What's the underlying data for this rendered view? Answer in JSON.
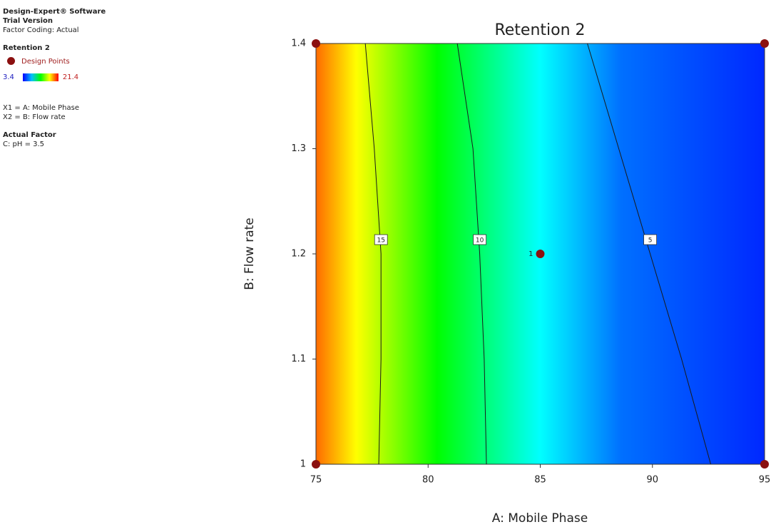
{
  "sidebar": {
    "software": "Design-Expert® Software",
    "version": "Trial Version",
    "coding": "Factor Coding: Actual",
    "response": "Retention 2",
    "design_points": "Design Points",
    "scale_min": "3.4",
    "scale_max": "21.4",
    "x1": "X1 = A: Mobile Phase",
    "x2": "X2 = B: Flow rate",
    "actual_factor": "Actual Factor",
    "factor_c": "C: pH = 3.5"
  },
  "chart_data": {
    "type": "contour",
    "title": "Retention 2",
    "x_label": "A: Mobile Phase",
    "y_label": "B: Flow rate",
    "xlim": [
      75,
      95
    ],
    "ylim": [
      1,
      1.4
    ],
    "xticks": [
      75,
      80,
      85,
      90,
      95
    ],
    "yticks": [
      1,
      1.1,
      1.2,
      1.3,
      1.4
    ],
    "line_color": "#1a1a1a",
    "contours": [
      {
        "level": 15,
        "x": [
          77.2,
          77.6,
          77.9,
          77.9,
          77.8
        ],
        "y": [
          1.4,
          1.3,
          1.2,
          1.1,
          1.0
        ]
      },
      {
        "level": 10,
        "x": [
          81.3,
          82.0,
          82.3,
          82.5,
          82.6
        ],
        "y": [
          1.4,
          1.3,
          1.2,
          1.1,
          1.0
        ]
      },
      {
        "level": 5,
        "x": [
          87.1,
          88.5,
          89.9,
          91.3,
          92.6
        ],
        "y": [
          1.4,
          1.3,
          1.2,
          1.1,
          1.0
        ]
      }
    ],
    "points": {
      "color": "#8b1010",
      "x": [
        75,
        95,
        85,
        75,
        95
      ],
      "y": [
        1.4,
        1.4,
        1.2,
        1.0,
        1.0
      ],
      "labels": [
        null,
        null,
        "1",
        null,
        null
      ]
    }
  }
}
